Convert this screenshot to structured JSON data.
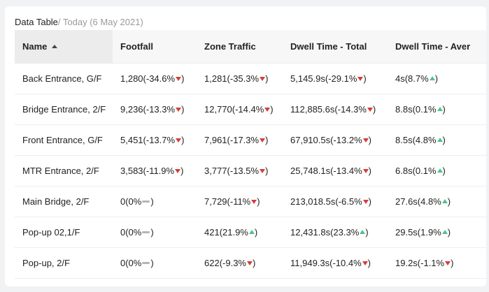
{
  "header": {
    "title": "Data Table",
    "subtitle": "/ Today (6 May 2021)"
  },
  "table": {
    "columns": [
      "Name",
      "Footfall",
      "Zone Traffic",
      "Dwell Time - Total",
      "Dwell Time - Aver"
    ],
    "sort": {
      "column": "Name",
      "direction": "ascending",
      "icon": "sort-up-icon"
    },
    "colors": {
      "down": "#d63b3b",
      "up": "#4cc38a",
      "flat": "#b5b5b5"
    },
    "rows": [
      {
        "name": "Back Entrance, G/F",
        "cells": [
          {
            "text": "1,280(-34.6%",
            "trend": "down"
          },
          {
            "text": "1,281(-35.3%",
            "trend": "down"
          },
          {
            "text": "5,145.9s(-29.1%",
            "trend": "down"
          },
          {
            "text": "4s(8.7%",
            "trend": "up"
          }
        ]
      },
      {
        "name": "Bridge Entrance, 2/F",
        "cells": [
          {
            "text": "9,236(-13.3%",
            "trend": "down"
          },
          {
            "text": "12,770(-14.4%",
            "trend": "down"
          },
          {
            "text": "112,885.6s(-14.3%",
            "trend": "down"
          },
          {
            "text": "8.8s(0.1%",
            "trend": "up"
          }
        ]
      },
      {
        "name": "Front Entrance, G/F",
        "cells": [
          {
            "text": "5,451(-13.7%",
            "trend": "down"
          },
          {
            "text": "7,961(-17.3%",
            "trend": "down"
          },
          {
            "text": "67,910.5s(-13.2%",
            "trend": "down"
          },
          {
            "text": "8.5s(4.8%",
            "trend": "up"
          }
        ]
      },
      {
        "name": "MTR Entrance, 2/F",
        "cells": [
          {
            "text": "3,583(-11.9%",
            "trend": "down"
          },
          {
            "text": "3,777(-13.5%",
            "trend": "down"
          },
          {
            "text": "25,748.1s(-13.4%",
            "trend": "down"
          },
          {
            "text": "6.8s(0.1%",
            "trend": "up"
          }
        ]
      },
      {
        "name": "Main Bridge, 2/F",
        "cells": [
          {
            "text": "0(0%",
            "trend": "flat"
          },
          {
            "text": "7,729(-11%",
            "trend": "down"
          },
          {
            "text": "213,018.5s(-6.5%",
            "trend": "down"
          },
          {
            "text": "27.6s(4.8%",
            "trend": "up"
          }
        ]
      },
      {
        "name": "Pop-up 02,1/F",
        "cells": [
          {
            "text": "0(0%",
            "trend": "flat"
          },
          {
            "text": "421(21.9%",
            "trend": "up"
          },
          {
            "text": "12,431.8s(23.3%",
            "trend": "up"
          },
          {
            "text": "29.5s(1.9%",
            "trend": "up"
          }
        ]
      },
      {
        "name": "Pop-up, 2/F",
        "cells": [
          {
            "text": "0(0%",
            "trend": "flat"
          },
          {
            "text": "622(-9.3%",
            "trend": "down"
          },
          {
            "text": "11,949.3s(-10.4%",
            "trend": "down"
          },
          {
            "text": "19.2s(-1.1%",
            "trend": "down"
          }
        ]
      }
    ]
  }
}
